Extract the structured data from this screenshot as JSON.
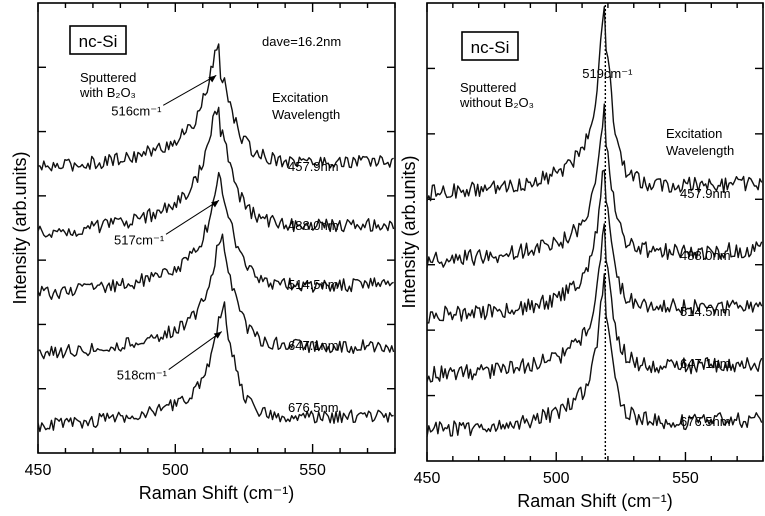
{
  "chart_data": [
    {
      "type": "line",
      "title": "nc-Si",
      "note": "dave=16.2nm",
      "xlabel": "Raman Shift (cm⁻¹)",
      "ylabel": "Intensity (arb.units)",
      "xlim": [
        450,
        580
      ],
      "xticks": [
        450,
        500,
        550
      ],
      "sample_lines": [
        "Sputtered",
        "with B₂O₃"
      ],
      "legend_title_lines": [
        "Excitation",
        "Wavelength"
      ],
      "annotations": [
        {
          "text": "516cm⁻¹",
          "peak_x": 516,
          "series_index": 0
        },
        {
          "text": "517cm⁻¹",
          "peak_x": 517,
          "series_index": 2
        },
        {
          "text": "518cm⁻¹",
          "peak_x": 518,
          "series_index": 4
        }
      ],
      "series": [
        {
          "name": "457.9nm",
          "peak": 516,
          "fwhm": 11,
          "baseline": 0.3,
          "slope": 0.004,
          "amplitude": 1.5,
          "offset": 4.2
        },
        {
          "name": "488.0nm",
          "peak": 516,
          "fwhm": 11,
          "baseline": 0.2,
          "slope": 0.005,
          "amplitude": 1.6,
          "offset": 3.25
        },
        {
          "name": "514.5nm",
          "peak": 517,
          "fwhm": 10,
          "baseline": 0.3,
          "slope": 0.005,
          "amplitude": 1.5,
          "offset": 2.2
        },
        {
          "name": "647.1nm",
          "peak": 517.5,
          "fwhm": 10,
          "baseline": 0.3,
          "slope": 0.004,
          "amplitude": 1.5,
          "offset": 1.25
        },
        {
          "name": "676.5nm",
          "peak": 518,
          "fwhm": 9,
          "baseline": 0.2,
          "slope": 0.005,
          "amplitude": 1.5,
          "offset": 0.2
        }
      ]
    },
    {
      "type": "line",
      "title": "nc-Si",
      "peak_label": "519cm⁻¹",
      "peak_line_x": 519,
      "xlabel": "Raman Shift (cm⁻¹)",
      "ylabel": "Intensity (arb.units)",
      "xlim": [
        450,
        580
      ],
      "xticks": [
        450,
        500,
        550
      ],
      "sample_lines": [
        "Sputtered",
        "without B₂O₃"
      ],
      "legend_title_lines": [
        "Excitation",
        "Wavelength"
      ],
      "series": [
        {
          "name": "457.9nm",
          "peak": 519,
          "fwhm": 6,
          "baseline": 0.3,
          "slope": 0.004,
          "amplitude": 2.0,
          "offset": 3.3
        },
        {
          "name": "488.0nm",
          "peak": 519,
          "fwhm": 6,
          "baseline": 0.25,
          "slope": 0.004,
          "amplitude": 1.6,
          "offset": 2.45
        },
        {
          "name": "514.5nm",
          "peak": 519,
          "fwhm": 6,
          "baseline": 0.25,
          "slope": 0.004,
          "amplitude": 1.6,
          "offset": 1.7
        },
        {
          "name": "647.1nm",
          "peak": 519,
          "fwhm": 6,
          "baseline": 0.2,
          "slope": 0.004,
          "amplitude": 1.6,
          "offset": 0.95
        },
        {
          "name": "676.5nm",
          "peak": 519,
          "fwhm": 6,
          "baseline": 0.2,
          "slope": 0.004,
          "amplitude": 1.6,
          "offset": 0.2
        }
      ]
    }
  ]
}
